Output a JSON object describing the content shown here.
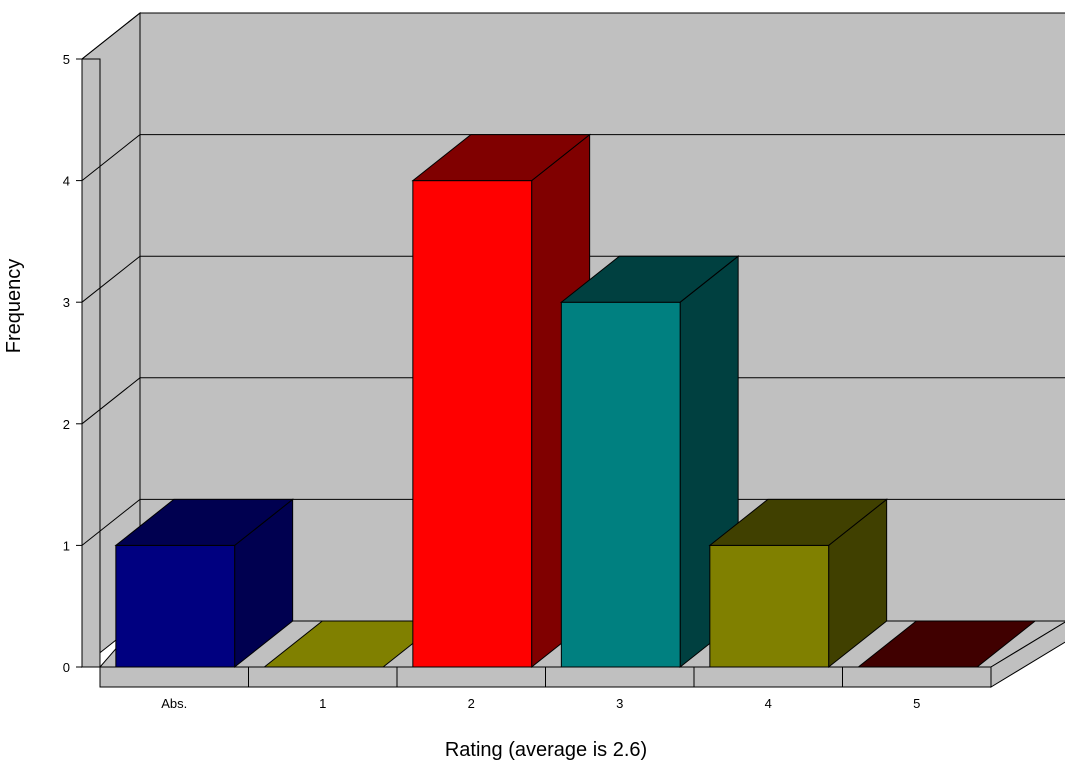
{
  "chart_data": {
    "type": "bar",
    "title": "",
    "xlabel": "Rating  (average is  2.6)",
    "ylabel": "Frequency",
    "categories": [
      "Abs.",
      "1",
      "2",
      "3",
      "4",
      "5"
    ],
    "values": [
      1,
      0,
      4,
      3,
      1,
      0
    ],
    "ylim": [
      0,
      5
    ],
    "yticks": [
      "0",
      "1",
      "2",
      "3",
      "4",
      "5"
    ],
    "grid": true,
    "legend": "none",
    "style": "3d",
    "bar_colors": {
      "front": [
        "#000080",
        "#808000",
        "#ff0000",
        "#008080",
        "#808000",
        "#800000"
      ],
      "top": [
        "#000050",
        "#808000",
        "#800000",
        "#004040",
        "#404000",
        "#400000"
      ],
      "side": [
        "#000050",
        "#808000",
        "#800000",
        "#004040",
        "#404000",
        "#400000"
      ]
    },
    "colors": {
      "wall": "#c0c0c0",
      "floor": "#c0c0c0",
      "gridline": "#000000"
    }
  }
}
